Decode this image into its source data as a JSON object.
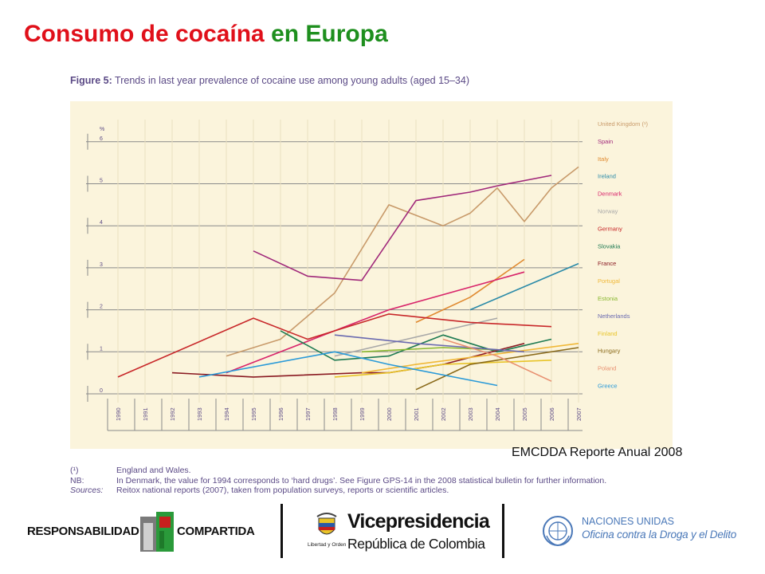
{
  "slide": {
    "title_part1": "Consumo de cocaína",
    "title_part2": "en Europa",
    "source_label": "EMCDDA Reporte Anual 2008"
  },
  "figure": {
    "label": "Figure 5:",
    "title": "Trends in last year prevalence of cocaine use among young adults (aged 15–34)"
  },
  "notes": [
    {
      "key": "(¹)",
      "text": "England and Wales.",
      "italic": false
    },
    {
      "key": "NB:",
      "text": "In Denmark, the value for 1994 corresponds to ‘hard drugs’. See Figure GPS-14 in the 2008 statistical bulletin for further information.",
      "italic": false
    },
    {
      "key": "Sources:",
      "text": "Reitox national reports (2007), taken from population surveys, reports or scientific articles.",
      "italic": true
    }
  ],
  "footer": {
    "rc_left": "RESPONSABILIDAD",
    "rc_right": "COMPARTIDA",
    "vp_title": "Vicepresidencia",
    "vp_sub": "República de Colombia",
    "vp_caption": "Libertad y Orden",
    "un_line1": "NACIONES UNIDAS",
    "un_line2": "Oficina contra la Droga y el Delito"
  },
  "colors": {
    "title_red": "#e0101a",
    "title_green": "#1e8f1e",
    "chart_bg": "#fbf4dc",
    "figure_text": "#5b4a86"
  },
  "chart_data": {
    "type": "line",
    "ylabel": "%",
    "ylim": [
      0,
      6
    ],
    "yticks": [
      "0",
      "1",
      "2",
      "3",
      "4",
      "5",
      "6"
    ],
    "x": [
      "1990",
      "1991",
      "1992",
      "1993",
      "1994",
      "1995",
      "1996",
      "1997",
      "1998",
      "1999",
      "2000",
      "2001",
      "2002",
      "2003",
      "2004",
      "2005",
      "2006",
      "2007"
    ],
    "grid": true,
    "legend_position": "right",
    "series": [
      {
        "name": "United Kingdom (¹)",
        "color": "#c89a6a",
        "points": [
          [
            1994,
            0.9
          ],
          [
            1996,
            1.3
          ],
          [
            1998,
            2.4
          ],
          [
            2000,
            4.5
          ],
          [
            2002,
            4.0
          ],
          [
            2003,
            4.3
          ],
          [
            2004,
            4.9
          ],
          [
            2005,
            4.1
          ],
          [
            2006,
            4.9
          ],
          [
            2007,
            5.4
          ]
        ]
      },
      {
        "name": "Spain",
        "color": "#a0287a",
        "points": [
          [
            1995,
            3.4
          ],
          [
            1997,
            2.8
          ],
          [
            1999,
            2.7
          ],
          [
            2001,
            4.6
          ],
          [
            2003,
            4.8
          ],
          [
            2004,
            4.95
          ],
          [
            2006,
            5.2
          ]
        ]
      },
      {
        "name": "Italy",
        "color": "#e08a30",
        "points": [
          [
            2001,
            1.7
          ],
          [
            2003,
            2.3
          ],
          [
            2005,
            3.2
          ]
        ]
      },
      {
        "name": "Ireland",
        "color": "#2a8aa8",
        "points": [
          [
            2003,
            2.0
          ],
          [
            2007,
            3.1
          ]
        ]
      },
      {
        "name": "Denmark",
        "color": "#d8246a",
        "points": [
          [
            1994,
            0.5
          ],
          [
            1998,
            1.5
          ],
          [
            2000,
            2.0
          ],
          [
            2005,
            2.9
          ]
        ]
      },
      {
        "name": "Norway",
        "color": "#a8a8a8",
        "points": [
          [
            1998,
            0.9
          ],
          [
            2002,
            1.5
          ],
          [
            2004,
            1.8
          ]
        ]
      },
      {
        "name": "Germany",
        "color": "#c8282a",
        "points": [
          [
            1990,
            0.4
          ],
          [
            1995,
            1.8
          ],
          [
            1997,
            1.3
          ],
          [
            2000,
            1.9
          ],
          [
            2003,
            1.7
          ],
          [
            2006,
            1.6
          ]
        ]
      },
      {
        "name": "Slovakia",
        "color": "#1e7a52",
        "points": [
          [
            1996,
            1.5
          ],
          [
            1998,
            0.8
          ],
          [
            2000,
            0.9
          ],
          [
            2002,
            1.4
          ],
          [
            2004,
            1.0
          ],
          [
            2006,
            1.3
          ]
        ]
      },
      {
        "name": "France",
        "color": "#8a1a22",
        "points": [
          [
            1992,
            0.5
          ],
          [
            1995,
            0.4
          ],
          [
            1999,
            0.5
          ],
          [
            2000,
            0.5
          ],
          [
            2002,
            0.7
          ],
          [
            2005,
            1.2
          ]
        ]
      },
      {
        "name": "Portugal",
        "color": "#f0b838",
        "points": [
          [
            1999,
            0.5
          ],
          [
            2001,
            0.7
          ],
          [
            2007,
            1.2
          ]
        ]
      },
      {
        "name": "Estonia",
        "color": "#8ab830",
        "points": [
          [
            1999,
            1.0
          ],
          [
            2002,
            1.1
          ],
          [
            2004,
            1.05
          ]
        ]
      },
      {
        "name": "Netherlands",
        "color": "#6a6ab0",
        "points": [
          [
            1998,
            1.4
          ],
          [
            2001,
            1.2
          ],
          [
            2003,
            1.1
          ],
          [
            2005,
            1.0
          ]
        ]
      },
      {
        "name": "Finland",
        "color": "#e8c428",
        "points": [
          [
            1998,
            0.4
          ],
          [
            2000,
            0.5
          ],
          [
            2002,
            0.7
          ],
          [
            2006,
            0.8
          ]
        ]
      },
      {
        "name": "Hungary",
        "color": "#8a6a1a",
        "points": [
          [
            2001,
            0.1
          ],
          [
            2003,
            0.7
          ],
          [
            2007,
            1.1
          ]
        ]
      },
      {
        "name": "Poland",
        "color": "#e89070",
        "points": [
          [
            2002,
            1.3
          ],
          [
            2004,
            0.9
          ],
          [
            2006,
            0.3
          ]
        ]
      },
      {
        "name": "Greece",
        "color": "#2a9ad8",
        "points": [
          [
            1993,
            0.4
          ],
          [
            1998,
            1.0
          ],
          [
            2000,
            0.7
          ],
          [
            2004,
            0.2
          ]
        ]
      }
    ]
  }
}
